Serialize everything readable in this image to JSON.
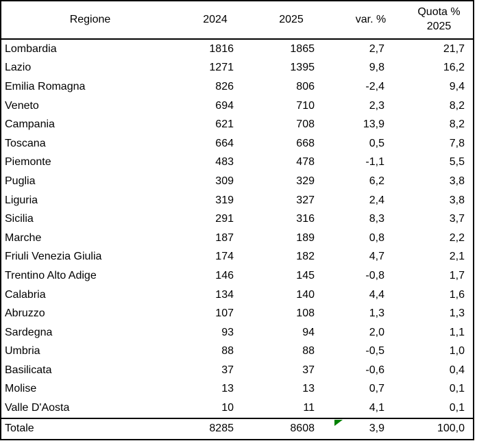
{
  "table": {
    "headers": [
      "Regione",
      "2024",
      "2025",
      "var. %",
      "Quota %"
    ],
    "quota_header_line2": "2025",
    "rows": [
      [
        "Lombardia",
        "1816",
        "1865",
        "2,7",
        "21,7"
      ],
      [
        "Lazio",
        "1271",
        "1395",
        "9,8",
        "16,2"
      ],
      [
        "Emilia Romagna",
        "826",
        "806",
        "-2,4",
        "9,4"
      ],
      [
        "Veneto",
        "694",
        "710",
        "2,3",
        "8,2"
      ],
      [
        "Campania",
        "621",
        "708",
        "13,9",
        "8,2"
      ],
      [
        "Toscana",
        "664",
        "668",
        "0,5",
        "7,8"
      ],
      [
        "Piemonte",
        "483",
        "478",
        "-1,1",
        "5,5"
      ],
      [
        "Puglia",
        "309",
        "329",
        "6,2",
        "3,8"
      ],
      [
        "Liguria",
        "319",
        "327",
        "2,4",
        "3,8"
      ],
      [
        "Sicilia",
        "291",
        "316",
        "8,3",
        "3,7"
      ],
      [
        "Marche",
        "187",
        "189",
        "0,8",
        "2,2"
      ],
      [
        "Friuli Venezia Giulia",
        "174",
        "182",
        "4,7",
        "2,1"
      ],
      [
        "Trentino Alto Adige",
        "146",
        "145",
        "-0,8",
        "1,7"
      ],
      [
        "Calabria",
        "134",
        "140",
        "4,4",
        "1,6"
      ],
      [
        "Abruzzo",
        "107",
        "108",
        "1,3",
        "1,3"
      ],
      [
        "Sardegna",
        "93",
        "94",
        "2,0",
        "1,1"
      ],
      [
        "Umbria",
        "88",
        "88",
        "-0,5",
        "1,0"
      ],
      [
        "Basilicata",
        "37",
        "37",
        "-0,6",
        "0,4"
      ],
      [
        "Molise",
        "13",
        "13",
        "0,7",
        "0,1"
      ],
      [
        "Valle D'Aosta",
        "10",
        "11",
        "4,1",
        "0,1"
      ]
    ],
    "total_row": [
      "Totale",
      "8285",
      "8608",
      "3,9",
      "100,0"
    ]
  },
  "marker": {
    "name": "green-triangle",
    "color": "#008000"
  },
  "chart_data": {
    "type": "table",
    "title": "",
    "columns": [
      "Regione",
      "2024",
      "2025",
      "var. %",
      "Quota % 2025"
    ],
    "rows": [
      [
        "Lombardia",
        1816,
        1865,
        2.7,
        21.7
      ],
      [
        "Lazio",
        1271,
        1395,
        9.8,
        16.2
      ],
      [
        "Emilia Romagna",
        826,
        806,
        -2.4,
        9.4
      ],
      [
        "Veneto",
        694,
        710,
        2.3,
        8.2
      ],
      [
        "Campania",
        621,
        708,
        13.9,
        8.2
      ],
      [
        "Toscana",
        664,
        668,
        0.5,
        7.8
      ],
      [
        "Piemonte",
        483,
        478,
        -1.1,
        5.5
      ],
      [
        "Puglia",
        309,
        329,
        6.2,
        3.8
      ],
      [
        "Liguria",
        319,
        327,
        2.4,
        3.8
      ],
      [
        "Sicilia",
        291,
        316,
        8.3,
        3.7
      ],
      [
        "Marche",
        187,
        189,
        0.8,
        2.2
      ],
      [
        "Friuli Venezia Giulia",
        174,
        182,
        4.7,
        2.1
      ],
      [
        "Trentino Alto Adige",
        146,
        145,
        -0.8,
        1.7
      ],
      [
        "Calabria",
        134,
        140,
        4.4,
        1.6
      ],
      [
        "Abruzzo",
        107,
        108,
        1.3,
        1.3
      ],
      [
        "Sardegna",
        93,
        94,
        2.0,
        1.1
      ],
      [
        "Umbria",
        88,
        88,
        -0.5,
        1.0
      ],
      [
        "Basilicata",
        37,
        37,
        -0.6,
        0.4
      ],
      [
        "Molise",
        13,
        13,
        0.7,
        0.1
      ],
      [
        "Valle D'Aosta",
        10,
        11,
        4.1,
        0.1
      ]
    ],
    "total": [
      "Totale",
      8285,
      8608,
      3.9,
      100.0
    ],
    "decimal_separator": ",",
    "notes": "Static data table, no gridlines between data rows; heavy rules around header, total row and outer frame."
  }
}
